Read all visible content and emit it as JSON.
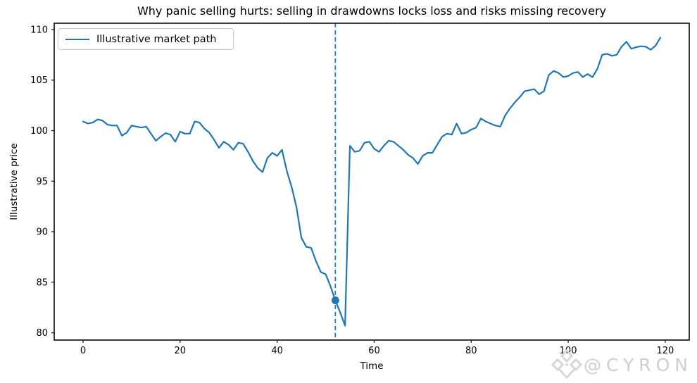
{
  "chart_data": {
    "type": "line",
    "title": "Why panic selling hurts: selling in drawdowns locks loss and risks missing recovery",
    "xlabel": "Time",
    "ylabel": "Illustrative price",
    "xticks": [
      0,
      20,
      40,
      60,
      80,
      100,
      120
    ],
    "yticks": [
      80,
      85,
      90,
      95,
      100,
      105,
      110
    ],
    "xlim": [
      -5.95,
      124.95
    ],
    "ylim": [
      79.275,
      110.625
    ],
    "grid": false,
    "legend_position": "upper left",
    "series": [
      {
        "name": "Illustrative market path",
        "color": "#1f77b4",
        "x_start": 0,
        "x_step": 1,
        "values": [
          100.9,
          100.7,
          100.8,
          101.1,
          101.0,
          100.6,
          100.5,
          100.5,
          99.5,
          99.8,
          100.5,
          100.4,
          100.3,
          100.4,
          99.7,
          99.0,
          99.4,
          99.75,
          99.6,
          98.9,
          99.9,
          99.7,
          99.7,
          100.9,
          100.8,
          100.2,
          99.8,
          99.1,
          98.3,
          98.9,
          98.6,
          98.1,
          98.8,
          98.7,
          97.9,
          97.0,
          96.3,
          95.9,
          97.3,
          97.8,
          97.5,
          98.1,
          96.0,
          94.4,
          92.4,
          89.4,
          88.5,
          88.4,
          87.1,
          86.0,
          85.8,
          84.6,
          83.2,
          82.0,
          80.7,
          98.5,
          97.9,
          98.0,
          98.8,
          98.9,
          98.2,
          97.9,
          98.5,
          99.0,
          98.9,
          98.5,
          98.1,
          97.6,
          97.3,
          96.7,
          97.5,
          97.8,
          97.8,
          98.6,
          99.4,
          99.7,
          99.6,
          100.7,
          99.7,
          99.8,
          100.1,
          100.3,
          101.2,
          100.9,
          100.7,
          100.5,
          100.4,
          101.5,
          102.2,
          102.8,
          103.3,
          103.9,
          104.0,
          104.1,
          103.6,
          103.9,
          105.5,
          105.9,
          105.7,
          105.3,
          105.4,
          105.7,
          105.8,
          105.3,
          105.6,
          105.3,
          106.1,
          107.5,
          107.6,
          107.4,
          107.5,
          108.3,
          108.8,
          108.1,
          108.25,
          108.35,
          108.3,
          108.0,
          108.4,
          109.2
        ]
      }
    ],
    "annotations": {
      "panic_sell_vline": {
        "type": "vline",
        "x": 52,
        "linestyle": "dashed",
        "color": "#1f77b4"
      },
      "panic_sell_marker": {
        "type": "point",
        "x": 52,
        "y": 83.2,
        "color": "#1f77b4"
      }
    }
  },
  "colors": {
    "line": "#1f77b4",
    "spine": "#222222",
    "tick_label": "#000000",
    "legend_border": "#cccccc",
    "watermark": "#d4d4d4",
    "background": "#ffffff"
  },
  "watermark": {
    "handle": "@CYRON",
    "logo_icon": "gem-diamond-icon"
  }
}
